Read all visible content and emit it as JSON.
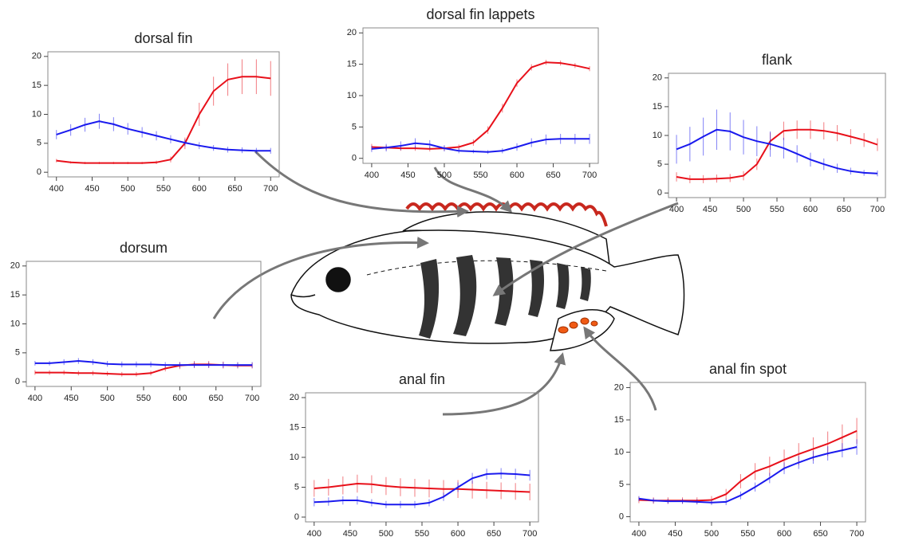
{
  "chart_data": [
    {
      "type": "line",
      "title": "dorsal fin",
      "x": [
        400,
        420,
        440,
        460,
        480,
        500,
        520,
        540,
        560,
        580,
        600,
        620,
        640,
        660,
        680,
        700
      ],
      "xlim": [
        388,
        712
      ],
      "ylim": [
        -0.8,
        20.8
      ],
      "xticks": [
        400,
        450,
        500,
        550,
        600,
        650,
        700
      ],
      "yticks": [
        0,
        5,
        10,
        15,
        20
      ],
      "series": [
        {
          "color": "#e8101a",
          "values": [
            2,
            1.7,
            1.6,
            1.6,
            1.6,
            1.6,
            1.6,
            1.7,
            2.2,
            5,
            10,
            14,
            16,
            16.5,
            16.5,
            16.2
          ],
          "errors": [
            0.3,
            0.2,
            0.2,
            0.2,
            0.2,
            0.2,
            0.2,
            0.3,
            0.5,
            1,
            2,
            2.5,
            2.8,
            3,
            3,
            3
          ]
        },
        {
          "color": "#1a1aee",
          "values": [
            6.5,
            7.3,
            8.2,
            8.8,
            8.3,
            7.5,
            6.9,
            6.3,
            5.7,
            5.1,
            4.6,
            4.2,
            3.9,
            3.8,
            3.7,
            3.7
          ],
          "errors": [
            0.8,
            1,
            1.2,
            1.3,
            1.2,
            1,
            0.9,
            0.8,
            0.7,
            0.6,
            0.6,
            0.5,
            0.5,
            0.5,
            0.5,
            0.5
          ]
        }
      ]
    },
    {
      "type": "line",
      "title": "dorsal fin lappets",
      "x": [
        400,
        420,
        440,
        460,
        480,
        500,
        520,
        540,
        560,
        580,
        600,
        620,
        640,
        660,
        680,
        700
      ],
      "xlim": [
        388,
        712
      ],
      "ylim": [
        -0.8,
        20.8
      ],
      "xticks": [
        400,
        450,
        500,
        550,
        600,
        650,
        700
      ],
      "yticks": [
        0,
        5,
        10,
        15,
        20
      ],
      "series": [
        {
          "color": "#e8101a",
          "values": [
            1.8,
            1.7,
            1.6,
            1.6,
            1.5,
            1.6,
            1.8,
            2.5,
            4.5,
            8,
            12,
            14.5,
            15.3,
            15.2,
            14.8,
            14.3
          ],
          "errors": [
            0.5,
            0.4,
            0.4,
            0.4,
            0.4,
            0.4,
            0.4,
            0.5,
            0.6,
            0.7,
            0.6,
            0.5,
            0.4,
            0.4,
            0.4,
            0.4
          ]
        },
        {
          "color": "#1a1aee",
          "values": [
            1.5,
            1.7,
            2,
            2.4,
            2.2,
            1.6,
            1.2,
            1.1,
            1,
            1.2,
            1.8,
            2.5,
            3,
            3.1,
            3.1,
            3.1
          ],
          "errors": [
            0.5,
            0.6,
            0.7,
            0.8,
            0.7,
            0.5,
            0.4,
            0.3,
            0.3,
            0.4,
            0.6,
            0.7,
            0.8,
            0.8,
            0.8,
            0.8
          ]
        }
      ]
    },
    {
      "type": "line",
      "title": "flank",
      "x": [
        400,
        420,
        440,
        460,
        480,
        500,
        520,
        540,
        560,
        580,
        600,
        620,
        640,
        660,
        680,
        700
      ],
      "xlim": [
        388,
        712
      ],
      "ylim": [
        -0.8,
        20.8
      ],
      "xticks": [
        400,
        450,
        500,
        550,
        600,
        650,
        700
      ],
      "yticks": [
        0,
        5,
        10,
        15,
        20
      ],
      "series": [
        {
          "color": "#e8101a",
          "values": [
            2.8,
            2.4,
            2.4,
            2.5,
            2.6,
            3,
            5,
            9,
            10.8,
            11,
            11,
            10.8,
            10.4,
            9.8,
            9.2,
            8.4
          ],
          "errors": [
            0.8,
            0.7,
            0.7,
            0.7,
            0.7,
            0.8,
            1,
            1.5,
            1.6,
            1.6,
            1.6,
            1.5,
            1.4,
            1.3,
            1.2,
            1.1
          ]
        },
        {
          "color": "#1a1aee",
          "values": [
            7.6,
            8.5,
            9.8,
            11,
            10.7,
            9.7,
            9,
            8.5,
            7.8,
            6.8,
            5.8,
            5,
            4.3,
            3.8,
            3.5,
            3.4
          ],
          "errors": [
            2.5,
            3,
            3.3,
            3.5,
            3.3,
            3,
            2.6,
            2.2,
            1.8,
            1.5,
            1.2,
            1,
            0.8,
            0.6,
            0.5,
            0.5
          ]
        }
      ]
    },
    {
      "type": "line",
      "title": "dorsum",
      "x": [
        400,
        420,
        440,
        460,
        480,
        500,
        520,
        540,
        560,
        580,
        600,
        620,
        640,
        660,
        680,
        700
      ],
      "xlim": [
        388,
        712
      ],
      "ylim": [
        -0.8,
        20.8
      ],
      "xticks": [
        400,
        450,
        500,
        550,
        600,
        650,
        700
      ],
      "yticks": [
        0,
        5,
        10,
        15,
        20
      ],
      "series": [
        {
          "color": "#e8101a",
          "values": [
            1.6,
            1.6,
            1.6,
            1.5,
            1.5,
            1.4,
            1.3,
            1.3,
            1.5,
            2.3,
            2.8,
            3,
            3,
            2.9,
            2.8,
            2.8
          ],
          "errors": [
            0.4,
            0.4,
            0.4,
            0.4,
            0.4,
            0.4,
            0.4,
            0.4,
            0.4,
            0.5,
            0.6,
            0.6,
            0.6,
            0.6,
            0.5,
            0.5
          ]
        },
        {
          "color": "#1a1aee",
          "values": [
            3.2,
            3.2,
            3.4,
            3.6,
            3.4,
            3.1,
            3,
            3,
            3,
            2.9,
            2.9,
            2.9,
            2.9,
            2.9,
            2.9,
            2.9
          ],
          "errors": [
            0.4,
            0.4,
            0.5,
            0.5,
            0.5,
            0.5,
            0.5,
            0.5,
            0.5,
            0.5,
            0.5,
            0.5,
            0.5,
            0.5,
            0.5,
            0.5
          ]
        }
      ]
    },
    {
      "type": "line",
      "title": "anal fin",
      "x": [
        400,
        420,
        440,
        460,
        480,
        500,
        520,
        540,
        560,
        580,
        600,
        620,
        640,
        660,
        680,
        700
      ],
      "xlim": [
        388,
        712
      ],
      "ylim": [
        -0.8,
        20.8
      ],
      "xticks": [
        400,
        450,
        500,
        550,
        600,
        650,
        700
      ],
      "yticks": [
        0,
        5,
        10,
        15,
        20
      ],
      "series": [
        {
          "color": "#e8101a",
          "values": [
            4.8,
            5,
            5.3,
            5.6,
            5.5,
            5.2,
            5,
            4.9,
            4.8,
            4.7,
            4.7,
            4.6,
            4.5,
            4.4,
            4.3,
            4.2
          ],
          "errors": [
            1.4,
            1.4,
            1.5,
            1.5,
            1.5,
            1.5,
            1.5,
            1.5,
            1.5,
            1.5,
            1.5,
            1.5,
            1.4,
            1.4,
            1.4,
            1.4
          ]
        },
        {
          "color": "#1a1aee",
          "values": [
            2.5,
            2.6,
            2.8,
            2.8,
            2.4,
            2.1,
            2.1,
            2.1,
            2.4,
            3.4,
            5,
            6.5,
            7.2,
            7.3,
            7.2,
            7
          ],
          "errors": [
            0.7,
            0.7,
            0.7,
            0.7,
            0.6,
            0.6,
            0.6,
            0.6,
            0.6,
            0.7,
            0.8,
            0.9,
            0.9,
            0.9,
            0.9,
            0.9
          ]
        }
      ]
    },
    {
      "type": "line",
      "title": "anal fin spot",
      "x": [
        400,
        420,
        440,
        460,
        480,
        500,
        520,
        540,
        560,
        580,
        600,
        620,
        640,
        660,
        680,
        700
      ],
      "xlim": [
        388,
        712
      ],
      "ylim": [
        -0.8,
        20.8
      ],
      "xticks": [
        400,
        450,
        500,
        550,
        600,
        650,
        700
      ],
      "yticks": [
        0,
        5,
        10,
        15,
        20
      ],
      "series": [
        {
          "color": "#e8101a",
          "values": [
            2.6,
            2.5,
            2.5,
            2.5,
            2.5,
            2.6,
            3.5,
            5.5,
            7,
            7.8,
            8.8,
            9.7,
            10.5,
            11.3,
            12.3,
            13.3
          ],
          "errors": [
            0.5,
            0.5,
            0.5,
            0.5,
            0.5,
            0.6,
            0.8,
            1.1,
            1.3,
            1.5,
            1.6,
            1.7,
            1.8,
            1.9,
            2,
            2
          ]
        },
        {
          "color": "#1a1aee",
          "values": [
            2.8,
            2.5,
            2.4,
            2.4,
            2.3,
            2.2,
            2.3,
            3.3,
            4.6,
            6,
            7.5,
            8.4,
            9.2,
            9.8,
            10.3,
            10.8
          ],
          "errors": [
            0.4,
            0.4,
            0.4,
            0.4,
            0.4,
            0.4,
            0.5,
            0.6,
            0.7,
            0.8,
            0.9,
            1,
            1,
            1.1,
            1.1,
            1.2
          ]
        }
      ]
    }
  ]
}
